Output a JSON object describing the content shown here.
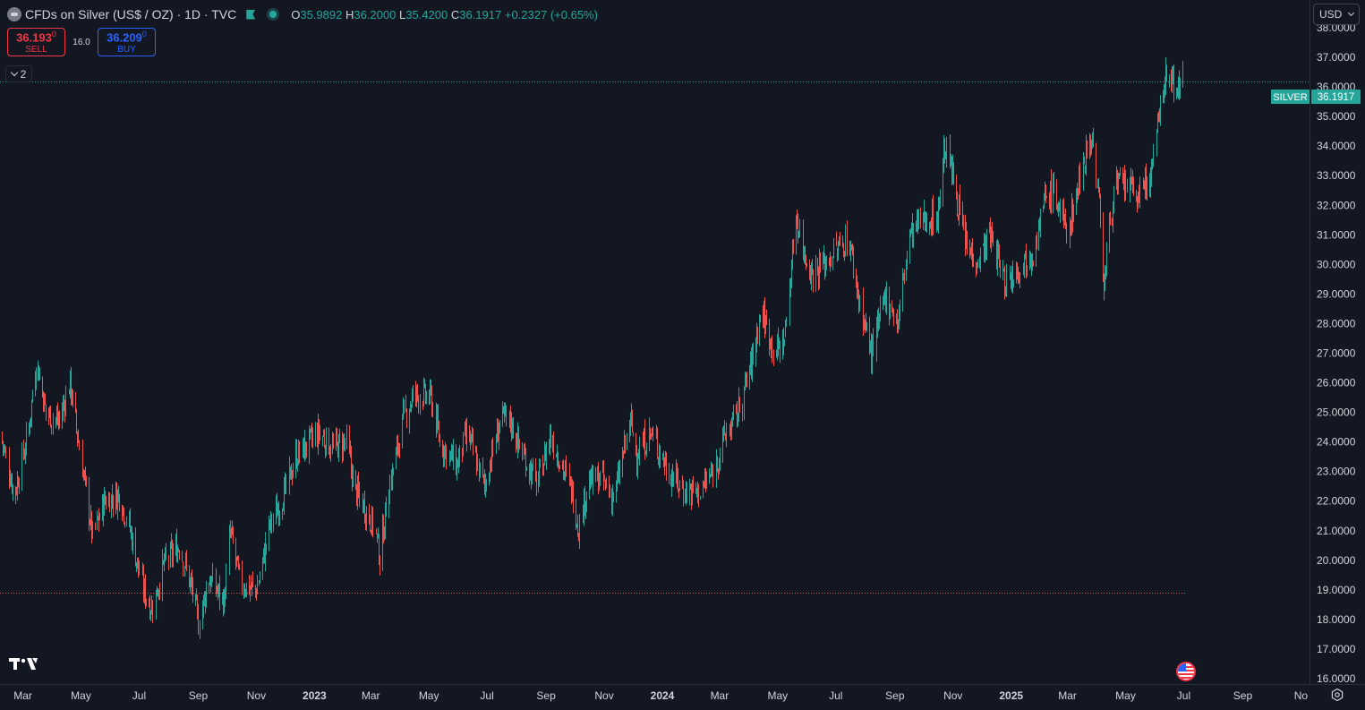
{
  "legend": {
    "title": "CFDs on Silver (US$ / OZ) · 1D · TVC",
    "o_label": "O",
    "o_value": "35.9892",
    "h_label": "H",
    "h_value": "36.2000",
    "l_label": "L",
    "l_value": "35.4200",
    "c_label": "C",
    "c_value": "36.1917",
    "change": "+0.2327 (+0.65%)"
  },
  "trading": {
    "sell_price": "36.193",
    "sell_price_sup": "0",
    "sell_label": "SELL",
    "spread": "16.0",
    "buy_price": "36.209",
    "buy_price_sup": "0",
    "buy_label": "BUY"
  },
  "indicators_toggle": "2",
  "currency": "USD",
  "colors": {
    "background": "#131722",
    "up": "#26a69a",
    "down": "#ef5350",
    "price_line": "#26a69a",
    "low_line": "#ef5350",
    "text": "#d1d4dc"
  },
  "icons": [
    "symbol-icon",
    "flag-icon",
    "live-dot-icon",
    "chevron-down-icon",
    "tradingview-logo-icon",
    "us-flag-icon",
    "settings-icon"
  ],
  "chart_data": {
    "type": "candlestick",
    "symbol_label": "SILVER",
    "last_price": "36.1917",
    "y_axis_ticks": [
      "38.0000",
      "37.0000",
      "36.0000",
      "35.0000",
      "34.0000",
      "33.0000",
      "32.0000",
      "31.0000",
      "30.0000",
      "29.0000",
      "28.0000",
      "27.0000",
      "26.0000",
      "25.0000",
      "24.0000",
      "23.0000",
      "22.0000",
      "21.0000",
      "20.0000",
      "19.0000",
      "18.0000",
      "17.0000",
      "16.0000"
    ],
    "ylim": [
      16,
      38
    ],
    "x_axis_ticks": [
      "Mar",
      "May",
      "Jul",
      "Sep",
      "Nov",
      "2023",
      "Mar",
      "May",
      "Jul",
      "Sep",
      "Nov",
      "2024",
      "Mar",
      "May",
      "Jul",
      "Sep",
      "Nov",
      "2025",
      "Mar",
      "May",
      "Jul",
      "Sep",
      "No"
    ],
    "x_tick_dates": [
      "2022-03-01",
      "2022-05-01",
      "2022-07-01",
      "2022-09-01",
      "2022-11-01",
      "2023-01-01",
      "2023-03-01",
      "2023-05-01",
      "2023-07-01",
      "2023-09-01",
      "2023-11-01",
      "2024-01-01",
      "2024-03-01",
      "2024-05-01",
      "2024-07-01",
      "2024-09-01",
      "2024-11-01",
      "2025-01-01",
      "2025-03-01",
      "2025-05-01",
      "2025-07-01",
      "2025-09-01",
      "2025-11-01"
    ],
    "x_range": [
      "2022-02-05",
      "2025-11-10"
    ],
    "low_line_value": 18.9,
    "close_path": [
      [
        "2022-02-05",
        24.3
      ],
      [
        "2022-02-20",
        22.2
      ],
      [
        "2022-03-07",
        24.5
      ],
      [
        "2022-03-15",
        26.7
      ],
      [
        "2022-03-25",
        25.0
      ],
      [
        "2022-04-08",
        24.7
      ],
      [
        "2022-04-19",
        26.0
      ],
      [
        "2022-05-05",
        22.5
      ],
      [
        "2022-05-13",
        20.8
      ],
      [
        "2022-05-25",
        22.0
      ],
      [
        "2022-06-10",
        22.2
      ],
      [
        "2022-06-20",
        21.2
      ],
      [
        "2022-07-05",
        19.0
      ],
      [
        "2022-07-14",
        18.4
      ],
      [
        "2022-07-27",
        19.9
      ],
      [
        "2022-08-12",
        20.5
      ],
      [
        "2022-08-26",
        18.9
      ],
      [
        "2022-09-01",
        17.9
      ],
      [
        "2022-09-12",
        19.4
      ],
      [
        "2022-09-28",
        18.6
      ],
      [
        "2022-10-04",
        21.0
      ],
      [
        "2022-10-15",
        19.2
      ],
      [
        "2022-11-01",
        19.0
      ],
      [
        "2022-11-15",
        21.2
      ],
      [
        "2022-12-01",
        22.3
      ],
      [
        "2022-12-12",
        23.5
      ],
      [
        "2023-01-05",
        24.3
      ],
      [
        "2023-01-20",
        23.8
      ],
      [
        "2023-02-03",
        24.0
      ],
      [
        "2023-02-12",
        22.4
      ],
      [
        "2023-03-05",
        21.1
      ],
      [
        "2023-03-10",
        20.1
      ],
      [
        "2023-03-20",
        22.5
      ],
      [
        "2023-04-05",
        24.9
      ],
      [
        "2023-04-15",
        25.6
      ],
      [
        "2023-05-03",
        25.5
      ],
      [
        "2023-05-12",
        24.0
      ],
      [
        "2023-05-30",
        23.2
      ],
      [
        "2023-06-10",
        24.3
      ],
      [
        "2023-06-28",
        22.5
      ],
      [
        "2023-07-15",
        24.8
      ],
      [
        "2023-07-25",
        24.7
      ],
      [
        "2023-08-07",
        23.6
      ],
      [
        "2023-08-22",
        22.6
      ],
      [
        "2023-09-05",
        24.2
      ],
      [
        "2023-09-14",
        23.5
      ],
      [
        "2023-09-28",
        22.3
      ],
      [
        "2023-10-05",
        21.1
      ],
      [
        "2023-10-14",
        22.6
      ],
      [
        "2023-10-28",
        22.8
      ],
      [
        "2023-11-11",
        22.1
      ],
      [
        "2023-11-28",
        24.7
      ],
      [
        "2023-12-05",
        23.6
      ],
      [
        "2023-12-19",
        24.3
      ],
      [
        "2024-01-08",
        23.0
      ],
      [
        "2024-01-22",
        22.4
      ],
      [
        "2024-02-07",
        22.3
      ],
      [
        "2024-02-22",
        22.9
      ],
      [
        "2024-03-06",
        24.2
      ],
      [
        "2024-03-20",
        25.0
      ],
      [
        "2024-04-05",
        26.9
      ],
      [
        "2024-04-13",
        28.5
      ],
      [
        "2024-04-28",
        27.0
      ],
      [
        "2024-05-08",
        27.5
      ],
      [
        "2024-05-20",
        31.7
      ],
      [
        "2024-05-28",
        30.4
      ],
      [
        "2024-06-06",
        29.7
      ],
      [
        "2024-06-20",
        30.1
      ],
      [
        "2024-07-05",
        30.6
      ],
      [
        "2024-07-14",
        30.9
      ],
      [
        "2024-07-27",
        28.5
      ],
      [
        "2024-08-07",
        27.0
      ],
      [
        "2024-08-22",
        29.0
      ],
      [
        "2024-09-04",
        28.0
      ],
      [
        "2024-09-15",
        30.9
      ],
      [
        "2024-09-28",
        31.5
      ],
      [
        "2024-10-15",
        31.6
      ],
      [
        "2024-10-23",
        34.0
      ],
      [
        "2024-11-01",
        32.9
      ],
      [
        "2024-11-15",
        30.5
      ],
      [
        "2024-11-27",
        30.2
      ],
      [
        "2024-12-10",
        31.0
      ],
      [
        "2024-12-25",
        29.4
      ],
      [
        "2025-01-10",
        30.0
      ],
      [
        "2025-01-24",
        30.5
      ],
      [
        "2025-02-05",
        32.2
      ],
      [
        "2025-02-14",
        32.5
      ],
      [
        "2025-02-28",
        31.1
      ],
      [
        "2025-03-10",
        32.3
      ],
      [
        "2025-03-18",
        33.7
      ],
      [
        "2025-03-27",
        34.3
      ],
      [
        "2025-04-03",
        32.0
      ],
      [
        "2025-04-08",
        29.3
      ],
      [
        "2025-04-18",
        32.6
      ],
      [
        "2025-05-01",
        32.7
      ],
      [
        "2025-05-14",
        32.3
      ],
      [
        "2025-05-29",
        33.1
      ],
      [
        "2025-06-04",
        35.0
      ],
      [
        "2025-06-11",
        36.3
      ],
      [
        "2025-06-20",
        36.2
      ],
      [
        "2025-06-27",
        35.9
      ],
      [
        "2025-06-30",
        36.2
      ]
    ]
  }
}
